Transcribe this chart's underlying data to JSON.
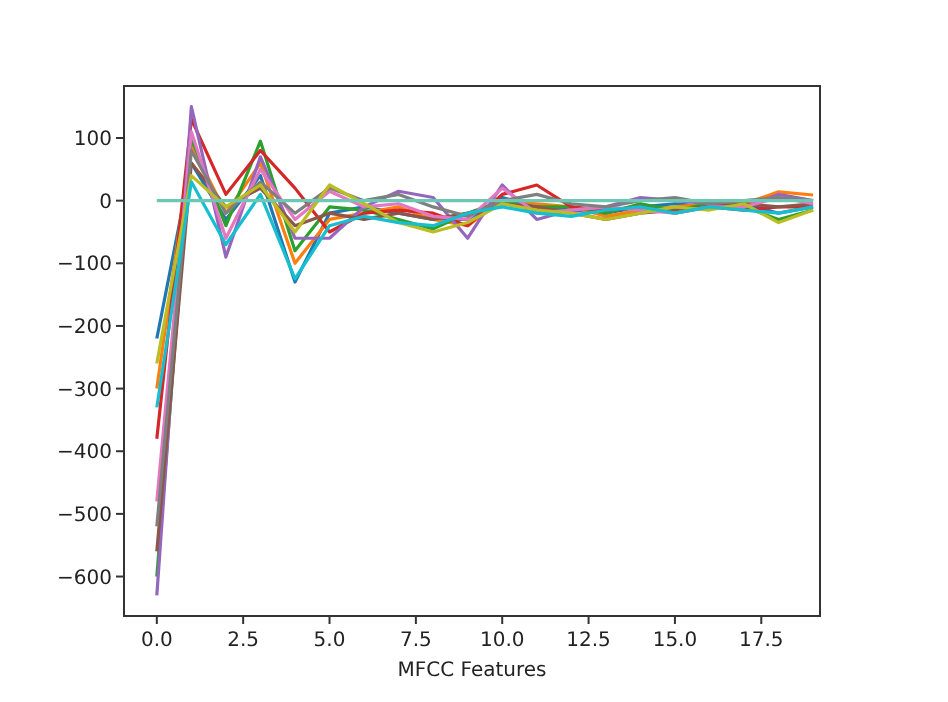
{
  "chart_data": {
    "type": "line",
    "xlabel": "MFCC Features",
    "x": [
      0,
      1,
      2,
      3,
      4,
      5,
      6,
      7,
      8,
      9,
      10,
      11,
      12,
      13,
      14,
      15,
      16,
      17,
      18,
      19
    ],
    "xlim": [
      -0.95,
      19.2
    ],
    "xticks": [
      {
        "value": 0,
        "label": "0.0"
      },
      {
        "value": 2.5,
        "label": "2.5"
      },
      {
        "value": 5,
        "label": "5.0"
      },
      {
        "value": 7.5,
        "label": "7.5"
      },
      {
        "value": 10,
        "label": "10.0"
      },
      {
        "value": 12.5,
        "label": "12.5"
      },
      {
        "value": 15,
        "label": "15.0"
      },
      {
        "value": 17.5,
        "label": "17.5"
      }
    ],
    "ylim": [
      -663,
      183
    ],
    "yticks": [
      -600,
      -500,
      -400,
      -300,
      -200,
      -100,
      0,
      100
    ],
    "grid": false,
    "marker": "none",
    "line_style": "solid",
    "series": [
      {
        "color": "#1f77b4",
        "values": [
          -220,
          60,
          -30,
          40,
          -130,
          -20,
          -10,
          -20,
          -30,
          -30,
          5,
          -10,
          -15,
          -20,
          -10,
          -5,
          -10,
          -5,
          -20,
          -10
        ]
      },
      {
        "color": "#ff7f0e",
        "values": [
          -300,
          90,
          -20,
          60,
          -100,
          -30,
          -20,
          -10,
          -30,
          -40,
          0,
          -5,
          -10,
          -25,
          -15,
          -10,
          -5,
          -5,
          14,
          9
        ]
      },
      {
        "color": "#2ca02c",
        "values": [
          -600,
          100,
          -40,
          95,
          -80,
          -10,
          -15,
          -30,
          -45,
          -20,
          0,
          -10,
          -10,
          -20,
          -5,
          -15,
          -5,
          -10,
          -30,
          -15
        ]
      },
      {
        "color": "#d62728",
        "values": [
          -380,
          130,
          10,
          80,
          20,
          -50,
          -20,
          -15,
          -20,
          -40,
          10,
          25,
          -10,
          -15,
          -10,
          -20,
          -10,
          -15,
          -10,
          -10
        ]
      },
      {
        "color": "#9467bd",
        "values": [
          -630,
          150,
          -90,
          70,
          -60,
          -60,
          -10,
          15,
          5,
          -60,
          25,
          -30,
          -15,
          -10,
          5,
          0,
          -5,
          -10,
          10,
          0
        ]
      },
      {
        "color": "#8c564b",
        "values": [
          -560,
          60,
          -10,
          20,
          -40,
          -20,
          -30,
          -20,
          -30,
          -20,
          -5,
          -10,
          -20,
          -30,
          -20,
          -15,
          -10,
          -5,
          -10,
          -5
        ]
      },
      {
        "color": "#e377c2",
        "values": [
          -480,
          110,
          -60,
          50,
          -30,
          15,
          -10,
          -5,
          -25,
          -30,
          20,
          -20,
          -15,
          -10,
          -15,
          -20,
          -10,
          -10,
          5,
          -5
        ]
      },
      {
        "color": "#7f7f7f",
        "values": [
          -520,
          80,
          -20,
          30,
          -20,
          20,
          0,
          10,
          -10,
          -25,
          0,
          10,
          -5,
          -10,
          0,
          5,
          -5,
          0,
          5,
          0
        ]
      },
      {
        "color": "#bcbd22",
        "values": [
          -260,
          40,
          -10,
          25,
          -50,
          25,
          -5,
          -35,
          -50,
          -35,
          -5,
          -15,
          -20,
          -30,
          -20,
          -10,
          -15,
          -5,
          -35,
          -15
        ]
      },
      {
        "color": "#17becf",
        "values": [
          -330,
          30,
          -70,
          10,
          -125,
          -40,
          -25,
          -35,
          -40,
          -20,
          -10,
          -20,
          -25,
          -15,
          -10,
          -20,
          -10,
          -15,
          -20,
          -10
        ]
      },
      {
        "color": "#6cc7b5",
        "values": [
          0,
          0,
          0,
          0,
          0,
          0,
          0,
          0,
          0,
          0,
          0,
          0,
          0,
          0,
          0,
          0,
          0,
          0,
          0,
          0
        ]
      }
    ]
  }
}
